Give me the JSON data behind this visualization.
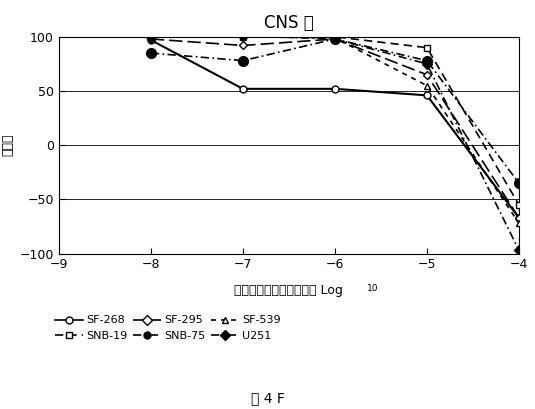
{
  "title": "CNS 癒",
  "ylabel": "増殖率",
  "caption": "図 4 F",
  "xlim": [
    -9,
    -4
  ],
  "ylim": [
    -100,
    100
  ],
  "xticks": [
    -9,
    -8,
    -7,
    -6,
    -5,
    -4
  ],
  "yticks": [
    -100,
    -50,
    0,
    50,
    100
  ],
  "series": [
    {
      "label": "SF-268",
      "x": [
        -8,
        -7,
        -6,
        -5,
        -4
      ],
      "y": [
        97,
        52,
        52,
        46,
        -67
      ],
      "linestyle": "-",
      "marker": "o",
      "markerfacecolor": "white",
      "color": "black",
      "linewidth": 1.5,
      "markersize": 5
    },
    {
      "label": "SNB-19",
      "x": [
        -8,
        -7,
        -6,
        -5,
        -4
      ],
      "y": [
        100,
        101,
        100,
        90,
        -55
      ],
      "linestyle": "dashed",
      "marker": "s",
      "markerfacecolor": "white",
      "color": "black",
      "linewidth": 1.2,
      "markersize": 5
    },
    {
      "label": "SF-295",
      "x": [
        -8,
        -7,
        -6,
        -5,
        -4
      ],
      "y": [
        98,
        92,
        98,
        65,
        -67
      ],
      "linestyle": "dashed",
      "marker": "D",
      "markerfacecolor": "white",
      "color": "black",
      "linewidth": 1.2,
      "markersize": 4
    },
    {
      "label": "SNB-75",
      "x": [
        -8,
        -7,
        -6,
        -5,
        -4
      ],
      "y": [
        85,
        78,
        98,
        78,
        -35
      ],
      "linestyle": "dashdot",
      "marker": "o",
      "markerfacecolor": "black",
      "color": "black",
      "linewidth": 1.2,
      "markersize": 7
    },
    {
      "label": "SF-539",
      "x": [
        -8,
        -7,
        -6,
        -5,
        -4
      ],
      "y": [
        101,
        100,
        99,
        55,
        -72
      ],
      "linestyle": "dashed",
      "marker": "^",
      "markerfacecolor": "white",
      "color": "black",
      "linewidth": 1.2,
      "markersize": 5
    },
    {
      "label": "U251",
      "x": [
        -8,
        -7,
        -6,
        -5,
        -4
      ],
      "y": [
        100,
        101,
        98,
        75,
        -97
      ],
      "linestyle": "dashdot",
      "marker": "D",
      "markerfacecolor": "black",
      "color": "black",
      "linewidth": 1.2,
      "markersize": 5
    }
  ],
  "background_color": "#ffffff",
  "xlabel_main": "サンプル濃度（モル）の Log",
  "xlabel_sub": "10"
}
